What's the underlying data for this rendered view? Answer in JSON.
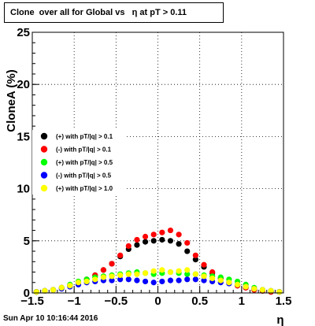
{
  "title": "Clone  over all for Global vs   η at pT > 0.11",
  "timestamp": "Sun Apr 10 10:16:44 2016",
  "chart_data": {
    "type": "scatter",
    "xlabel": "η",
    "ylabel": "CloneA (%)",
    "xlim": [
      -1.5,
      1.5
    ],
    "ylim": [
      0,
      25
    ],
    "xticks": [
      "−1.5",
      "−1",
      "−0.5",
      "0",
      "0.5",
      "1",
      "1.5"
    ],
    "yticks": [
      "0",
      "5",
      "10",
      "15",
      "20",
      "25"
    ],
    "grid": true,
    "legend_placement": "left",
    "series": [
      {
        "name": "(+) with pT/|q| > 0.1",
        "color": "#000000",
        "x": [
          -1.45,
          -1.35,
          -1.25,
          -1.15,
          -1.05,
          -0.95,
          -0.85,
          -0.75,
          -0.65,
          -0.55,
          -0.45,
          -0.35,
          -0.25,
          -0.15,
          -0.05,
          0.05,
          0.15,
          0.25,
          0.35,
          0.45,
          0.55,
          0.65,
          0.75,
          0.85,
          0.95,
          1.05,
          1.15,
          1.25,
          1.35,
          1.45
        ],
        "y": [
          0.1,
          0.2,
          0.3,
          0.5,
          0.7,
          1.0,
          1.3,
          1.7,
          2.2,
          2.8,
          3.5,
          4.2,
          4.6,
          4.9,
          5.0,
          5.1,
          5.0,
          4.7,
          4.0,
          3.2,
          2.5,
          1.9,
          1.4,
          1.0,
          0.7,
          0.5,
          0.3,
          0.2,
          0.1,
          0.1
        ]
      },
      {
        "name": "(-) with pT/|q| > 0.1",
        "color": "#ff0000",
        "x": [
          -1.45,
          -1.35,
          -1.25,
          -1.15,
          -1.05,
          -0.95,
          -0.85,
          -0.75,
          -0.65,
          -0.55,
          -0.45,
          -0.35,
          -0.25,
          -0.15,
          -0.05,
          0.05,
          0.15,
          0.25,
          0.35,
          0.45,
          0.55,
          0.65,
          0.75,
          0.85,
          0.95,
          1.05,
          1.15,
          1.25,
          1.35,
          1.45
        ],
        "y": [
          0.1,
          0.2,
          0.3,
          0.5,
          0.7,
          1.0,
          1.3,
          1.7,
          2.2,
          2.8,
          3.6,
          4.5,
          5.1,
          5.4,
          5.6,
          5.8,
          6.0,
          5.6,
          4.8,
          3.6,
          2.7,
          2.0,
          1.4,
          1.0,
          0.7,
          0.5,
          0.3,
          0.2,
          0.1,
          0.1
        ]
      },
      {
        "name": "(+) with pT/|q| > 0.5",
        "color": "#00ff00",
        "x": [
          -1.45,
          -1.35,
          -1.25,
          -1.15,
          -1.05,
          -0.95,
          -0.85,
          -0.75,
          -0.65,
          -0.55,
          -0.45,
          -0.35,
          -0.25,
          -0.15,
          -0.05,
          0.05,
          0.15,
          0.25,
          0.35,
          0.45,
          0.55,
          0.65,
          0.75,
          0.85,
          0.95,
          1.05,
          1.15,
          1.25,
          1.35,
          1.45
        ],
        "y": [
          0.1,
          0.2,
          0.3,
          0.5,
          0.8,
          1.1,
          1.3,
          1.5,
          1.6,
          1.7,
          1.8,
          1.9,
          2.0,
          1.9,
          1.8,
          1.9,
          2.0,
          1.9,
          1.8,
          1.8,
          1.7,
          1.6,
          1.5,
          1.3,
          1.1,
          0.8,
          0.5,
          0.3,
          0.2,
          0.1
        ]
      },
      {
        "name": "(-) with pT/|q| > 0.5",
        "color": "#0000ff",
        "x": [
          -1.45,
          -1.35,
          -1.25,
          -1.15,
          -1.05,
          -0.95,
          -0.85,
          -0.75,
          -0.65,
          -0.55,
          -0.45,
          -0.35,
          -0.25,
          -0.15,
          -0.05,
          0.05,
          0.15,
          0.25,
          0.35,
          0.45,
          0.55,
          0.65,
          0.75,
          0.85,
          0.95,
          1.05,
          1.15,
          1.25,
          1.35,
          1.45
        ],
        "y": [
          0.1,
          0.2,
          0.3,
          0.4,
          0.6,
          0.8,
          1.0,
          1.1,
          1.2,
          1.2,
          1.3,
          1.3,
          1.2,
          1.1,
          1.0,
          1.1,
          1.2,
          1.2,
          1.3,
          1.3,
          1.2,
          1.1,
          1.0,
          0.9,
          0.8,
          0.6,
          0.4,
          0.3,
          0.2,
          0.1
        ]
      },
      {
        "name": "(+) with pT/|q| > 1.0",
        "color": "#ffff00",
        "x": [
          -1.45,
          -1.35,
          -1.25,
          -1.15,
          -1.05,
          -0.95,
          -0.85,
          -0.75,
          -0.65,
          -0.55,
          -0.45,
          -0.35,
          -0.25,
          -0.15,
          -0.05,
          0.05,
          0.15,
          0.25,
          0.35,
          0.45,
          0.55,
          0.65,
          0.75,
          0.85,
          0.95,
          1.05,
          1.15,
          1.25,
          1.35,
          1.45
        ],
        "y": [
          0.1,
          0.2,
          0.3,
          0.5,
          0.7,
          1.0,
          1.1,
          1.3,
          1.5,
          1.6,
          1.7,
          1.8,
          1.8,
          1.9,
          2.1,
          2.2,
          2.0,
          2.1,
          2.2,
          1.8,
          1.6,
          1.4,
          1.2,
          1.0,
          0.8,
          0.6,
          0.4,
          0.3,
          0.2,
          0.1
        ]
      }
    ]
  }
}
